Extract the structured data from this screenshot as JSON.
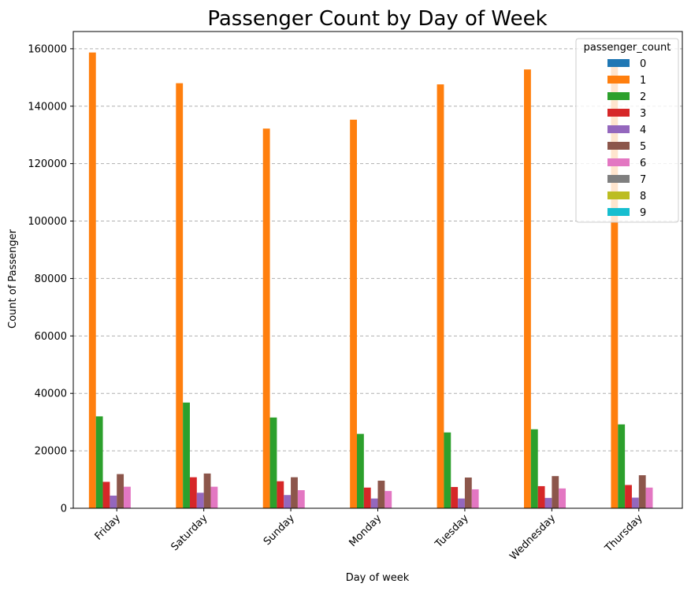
{
  "chart_data": {
    "type": "bar",
    "title": "Passenger Count by Day of Week",
    "xlabel": "Day of week",
    "ylabel": "Count of Passenger",
    "categories": [
      "Friday",
      "Saturday",
      "Sunday",
      "Monday",
      "Tuesday",
      "Wednesday",
      "Thursday"
    ],
    "ylim": [
      0,
      166000
    ],
    "yticks": [
      0,
      20000,
      40000,
      60000,
      80000,
      100000,
      120000,
      140000,
      160000
    ],
    "grid": "y-dashed",
    "legend": {
      "title": "passenger_count",
      "placement": "top-right"
    },
    "series": [
      {
        "name": "0",
        "color": "#1f77b4",
        "values": [
          0,
          0,
          0,
          0,
          0,
          0,
          0
        ]
      },
      {
        "name": "1",
        "color": "#ff7f0e",
        "values": [
          158700,
          148000,
          132200,
          135300,
          147600,
          152800,
          156000
        ]
      },
      {
        "name": "2",
        "color": "#2ca02c",
        "values": [
          32000,
          36800,
          31600,
          25900,
          26400,
          27500,
          29200
        ]
      },
      {
        "name": "3",
        "color": "#d62728",
        "values": [
          9200,
          10800,
          9400,
          7200,
          7400,
          7700,
          8100
        ]
      },
      {
        "name": "4",
        "color": "#9467bd",
        "values": [
          4400,
          5400,
          4600,
          3400,
          3400,
          3600,
          3700
        ]
      },
      {
        "name": "5",
        "color": "#8c564b",
        "values": [
          11900,
          12100,
          10800,
          9600,
          10700,
          11200,
          11500
        ]
      },
      {
        "name": "6",
        "color": "#e377c2",
        "values": [
          7500,
          7500,
          6300,
          6000,
          6600,
          6900,
          7200
        ]
      },
      {
        "name": "7",
        "color": "#7f7f7f",
        "values": [
          0,
          0,
          0,
          0,
          0,
          0,
          0
        ]
      },
      {
        "name": "8",
        "color": "#bcbd22",
        "values": [
          0,
          0,
          0,
          0,
          0,
          0,
          0
        ]
      },
      {
        "name": "9",
        "color": "#17becf",
        "values": [
          0,
          0,
          0,
          0,
          0,
          0,
          0
        ]
      }
    ]
  }
}
